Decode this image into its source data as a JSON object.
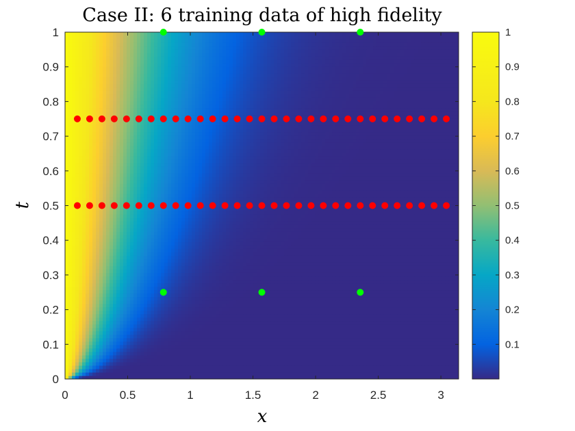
{
  "chart_data": {
    "type": "heatmap",
    "title": "Case II: 6 training data of high fidelity",
    "xlabel": "x",
    "ylabel": "t",
    "xlim": [
      0,
      3.14159
    ],
    "ylim": [
      0,
      1
    ],
    "xticks": [
      0,
      0.5,
      1,
      1.5,
      2,
      2.5,
      3
    ],
    "xtick_labels": [
      "0",
      "0.5",
      "1",
      "1.5",
      "2",
      "2.5",
      "3"
    ],
    "yticks": [
      0,
      0.1,
      0.2,
      0.3,
      0.4,
      0.5,
      0.6,
      0.7,
      0.8,
      0.9,
      1
    ],
    "ytick_labels": [
      "0",
      "0.1",
      "0.2",
      "0.3",
      "0.4",
      "0.5",
      "0.6",
      "0.7",
      "0.8",
      "0.9",
      "1"
    ],
    "colorbar": {
      "colormap": "parula",
      "clim": [
        0,
        1
      ],
      "ticks": [
        0.1,
        0.2,
        0.3,
        0.4,
        0.5,
        0.6,
        0.7,
        0.8,
        0.9,
        1
      ],
      "tick_labels": [
        "0.1",
        "0.2",
        "0.3",
        "0.4",
        "0.5",
        "0.6",
        "0.7",
        "0.8",
        "0.9",
        "1"
      ]
    },
    "series": [
      {
        "color": "#ff0000",
        "marker": "circle",
        "points": [
          {
            "x": 0.0982,
            "t": 0.5
          },
          {
            "x": 0.1963,
            "t": 0.5
          },
          {
            "x": 0.2945,
            "t": 0.5
          },
          {
            "x": 0.3927,
            "t": 0.5
          },
          {
            "x": 0.4909,
            "t": 0.5
          },
          {
            "x": 0.589,
            "t": 0.5
          },
          {
            "x": 0.6872,
            "t": 0.5
          },
          {
            "x": 0.7854,
            "t": 0.5
          },
          {
            "x": 0.8836,
            "t": 0.5
          },
          {
            "x": 0.9817,
            "t": 0.5
          },
          {
            "x": 1.0799,
            "t": 0.5
          },
          {
            "x": 1.1781,
            "t": 0.5
          },
          {
            "x": 1.2763,
            "t": 0.5
          },
          {
            "x": 1.3744,
            "t": 0.5
          },
          {
            "x": 1.4726,
            "t": 0.5
          },
          {
            "x": 1.5708,
            "t": 0.5
          },
          {
            "x": 1.669,
            "t": 0.5
          },
          {
            "x": 1.7671,
            "t": 0.5
          },
          {
            "x": 1.8653,
            "t": 0.5
          },
          {
            "x": 1.9635,
            "t": 0.5
          },
          {
            "x": 2.0617,
            "t": 0.5
          },
          {
            "x": 2.1598,
            "t": 0.5
          },
          {
            "x": 2.258,
            "t": 0.5
          },
          {
            "x": 2.3562,
            "t": 0.5
          },
          {
            "x": 2.4544,
            "t": 0.5
          },
          {
            "x": 2.5525,
            "t": 0.5
          },
          {
            "x": 2.6507,
            "t": 0.5
          },
          {
            "x": 2.7489,
            "t": 0.5
          },
          {
            "x": 2.8471,
            "t": 0.5
          },
          {
            "x": 2.9452,
            "t": 0.5
          },
          {
            "x": 3.0434,
            "t": 0.5
          },
          {
            "x": 0.0982,
            "t": 0.75
          },
          {
            "x": 0.1963,
            "t": 0.75
          },
          {
            "x": 0.2945,
            "t": 0.75
          },
          {
            "x": 0.3927,
            "t": 0.75
          },
          {
            "x": 0.4909,
            "t": 0.75
          },
          {
            "x": 0.589,
            "t": 0.75
          },
          {
            "x": 0.6872,
            "t": 0.75
          },
          {
            "x": 0.7854,
            "t": 0.75
          },
          {
            "x": 0.8836,
            "t": 0.75
          },
          {
            "x": 0.9817,
            "t": 0.75
          },
          {
            "x": 1.0799,
            "t": 0.75
          },
          {
            "x": 1.1781,
            "t": 0.75
          },
          {
            "x": 1.2763,
            "t": 0.75
          },
          {
            "x": 1.3744,
            "t": 0.75
          },
          {
            "x": 1.4726,
            "t": 0.75
          },
          {
            "x": 1.5708,
            "t": 0.75
          },
          {
            "x": 1.669,
            "t": 0.75
          },
          {
            "x": 1.7671,
            "t": 0.75
          },
          {
            "x": 1.8653,
            "t": 0.75
          },
          {
            "x": 1.9635,
            "t": 0.75
          },
          {
            "x": 2.0617,
            "t": 0.75
          },
          {
            "x": 2.1598,
            "t": 0.75
          },
          {
            "x": 2.258,
            "t": 0.75
          },
          {
            "x": 2.3562,
            "t": 0.75
          },
          {
            "x": 2.4544,
            "t": 0.75
          },
          {
            "x": 2.5525,
            "t": 0.75
          },
          {
            "x": 2.6507,
            "t": 0.75
          },
          {
            "x": 2.7489,
            "t": 0.75
          },
          {
            "x": 2.8471,
            "t": 0.75
          },
          {
            "x": 2.9452,
            "t": 0.75
          },
          {
            "x": 3.0434,
            "t": 0.75
          }
        ]
      },
      {
        "color": "#00ff00",
        "marker": "circle",
        "points": [
          {
            "x": 0.7854,
            "t": 0.25
          },
          {
            "x": 1.5708,
            "t": 0.25
          },
          {
            "x": 2.3562,
            "t": 0.25
          },
          {
            "x": 0.7854,
            "t": 1.0
          },
          {
            "x": 1.5708,
            "t": 1.0
          },
          {
            "x": 2.3562,
            "t": 1.0
          }
        ]
      }
    ]
  }
}
